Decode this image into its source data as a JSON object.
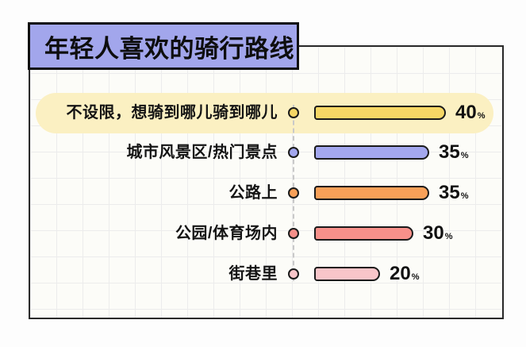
{
  "header": {
    "title": "年轻人喜欢的骑行路线"
  },
  "chart_data": {
    "type": "bar",
    "orientation": "horizontal",
    "title": "年轻人喜欢的骑行路线",
    "value_unit": "%",
    "categories": [
      "不设限，想骑到哪儿骑到哪儿",
      "城市风景区/热门景点",
      "公路上",
      "公园/体育场内",
      "街巷里"
    ],
    "values": [
      40,
      35,
      35,
      30,
      20
    ],
    "xlim": [
      0,
      40
    ],
    "grid": "faint square grid paper",
    "legend": "none",
    "highlighted_category": "不设限，想骑到哪儿骑到哪儿"
  },
  "rows": [
    {
      "label": "不设限，想骑到哪儿骑到哪儿",
      "value": "40",
      "unit": "%",
      "color": "#f6d765",
      "highlighted": true
    },
    {
      "label": "城市风景区/热门景点",
      "value": "35",
      "unit": "%",
      "color": "#a3a7ee",
      "highlighted": false
    },
    {
      "label": "公路上",
      "value": "35",
      "unit": "%",
      "color": "#f8a058",
      "highlighted": false
    },
    {
      "label": "公园/体育场内",
      "value": "30",
      "unit": "%",
      "color": "#f7908a",
      "highlighted": false
    },
    {
      "label": "街巷里",
      "value": "20",
      "unit": "%",
      "color": "#f8c5c9",
      "highlighted": false
    }
  ],
  "colors": {
    "title_bg": "#a2a6ec",
    "outline": "#1a1a1a",
    "highlight_bg": "#fbf0c2",
    "panel_bg": "#fcfcf8",
    "grid_line": "#ececec",
    "dashed_line": "#c9c9c9"
  }
}
